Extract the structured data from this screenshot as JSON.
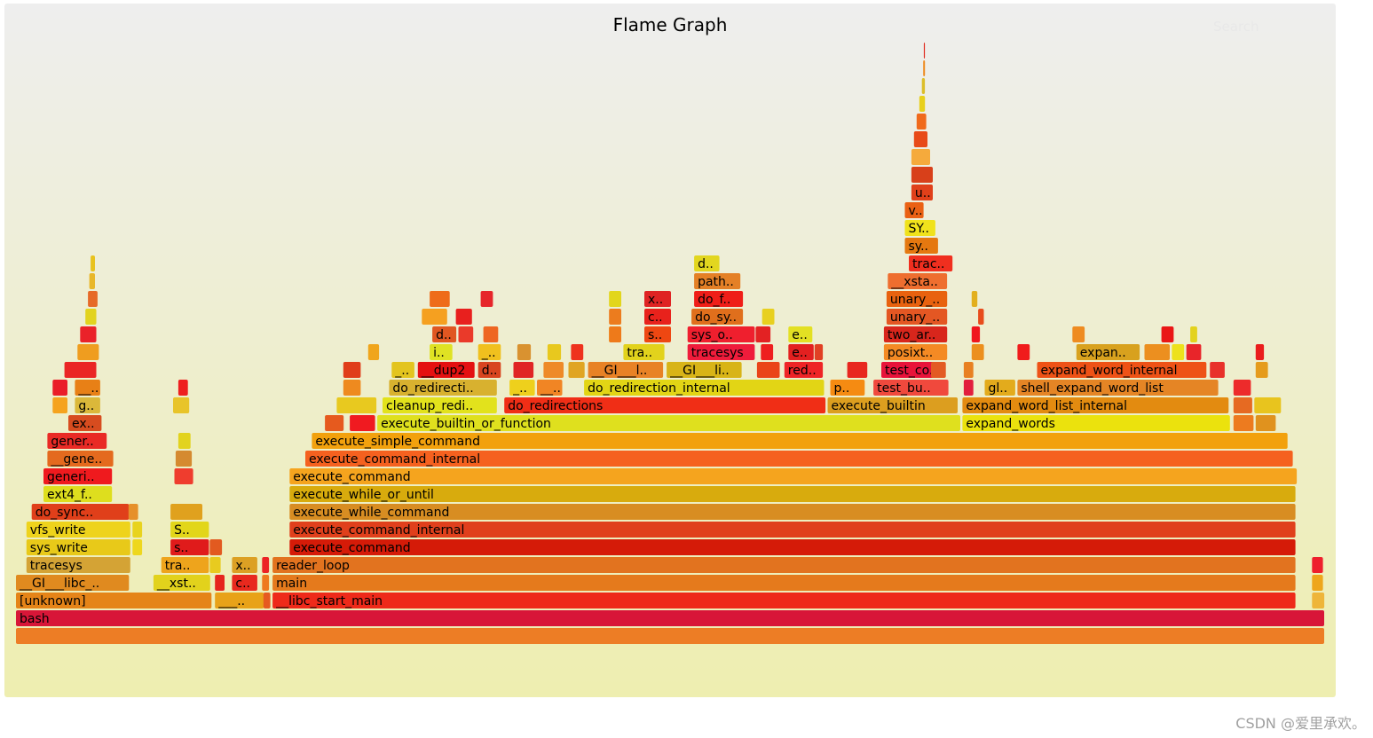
{
  "title": "Flame Graph",
  "search_label": "Search",
  "watermark": "CSDN @爱里承欢。",
  "chart_data": {
    "type": "flame",
    "title": "Flame Graph",
    "x_unit": "percent of total samples",
    "levels_bottom_up": true,
    "frames": [
      {
        "d": 0,
        "x": 0,
        "w": 100,
        "n": "",
        "c": "#ed7d25"
      },
      {
        "d": 1,
        "x": 0,
        "w": 100,
        "n": "bash",
        "c": "#d81638"
      },
      {
        "d": 2,
        "x": 0,
        "w": 15.0,
        "n": "[unknown]",
        "c": "#e58418"
      },
      {
        "d": 2,
        "x": 15.2,
        "w": 3.8,
        "n": "___..",
        "c": "#e8a218"
      },
      {
        "d": 2,
        "x": 19.6,
        "w": 78.2,
        "n": "__libc_start_main",
        "c": "#ee2a1a"
      },
      {
        "d": 2,
        "x": 99.0,
        "w": 1.0,
        "n": "",
        "c": "#eeb53a"
      },
      {
        "d": 3,
        "x": 0,
        "w": 8.7,
        "n": "__GI___libc_..",
        "c": "#e08a1f"
      },
      {
        "d": 3,
        "x": 10.5,
        "w": 4.4,
        "n": "__xst..",
        "c": "#e2d21c"
      },
      {
        "d": 3,
        "x": 16.5,
        "w": 2.0,
        "n": "c..",
        "c": "#e8291e"
      },
      {
        "d": 3,
        "x": 19.6,
        "w": 78.2,
        "n": "main",
        "c": "#e57a1c"
      },
      {
        "d": 3,
        "x": 99.0,
        "w": 0.9,
        "n": "",
        "c": "#eea61c"
      },
      {
        "d": 4,
        "x": 0.8,
        "w": 8.0,
        "n": "tracesys",
        "c": "#d4a335"
      },
      {
        "d": 4,
        "x": 11.1,
        "w": 3.7,
        "n": "tra..",
        "c": "#eea41c"
      },
      {
        "d": 4,
        "x": 16.5,
        "w": 2.0,
        "n": "x..",
        "c": "#dca024"
      },
      {
        "d": 4,
        "x": 19.6,
        "w": 78.2,
        "n": "reader_loop",
        "c": "#e2731f"
      },
      {
        "d": 4,
        "x": 99.0,
        "w": 0.9,
        "n": "",
        "c": "#ee1f2d"
      },
      {
        "d": 5,
        "x": 0.8,
        "w": 8.0,
        "n": "sys_write",
        "c": "#e8c919"
      },
      {
        "d": 5,
        "x": 11.8,
        "w": 3.0,
        "n": "s..",
        "c": "#e01b1b"
      },
      {
        "d": 5,
        "x": 20.9,
        "w": 76.9,
        "n": "execute_command",
        "c": "#d51b08"
      },
      {
        "d": 6,
        "x": 0.8,
        "w": 8.0,
        "n": "vfs_write",
        "c": "#eed31c"
      },
      {
        "d": 6,
        "x": 11.8,
        "w": 3.0,
        "n": "S..",
        "c": "#e2d619"
      },
      {
        "d": 6,
        "x": 20.9,
        "w": 76.9,
        "n": "execute_command_internal",
        "c": "#e0401c"
      },
      {
        "d": 7,
        "x": 1.2,
        "w": 7.5,
        "n": "do_sync..",
        "c": "#e03f1a"
      },
      {
        "d": 7,
        "x": 11.8,
        "w": 2.5,
        "n": "",
        "c": "#e0a11e"
      },
      {
        "d": 7,
        "x": 20.9,
        "w": 76.9,
        "n": "execute_while_command",
        "c": "#d88d22"
      },
      {
        "d": 8,
        "x": 2.1,
        "w": 5.3,
        "n": "ext4_f..",
        "c": "#dede1e"
      },
      {
        "d": 8,
        "x": 20.9,
        "w": 76.9,
        "n": "execute_while_or_until",
        "c": "#d8ab0d"
      },
      {
        "d": 9,
        "x": 2.1,
        "w": 5.3,
        "n": "generi..",
        "c": "#ef1a1e"
      },
      {
        "d": 9,
        "x": 12.1,
        "w": 1.5,
        "n": "",
        "c": "#ef3d2e"
      },
      {
        "d": 9,
        "x": 20.9,
        "w": 77.0,
        "n": "execute_command",
        "c": "#f5a41e"
      },
      {
        "d": 10,
        "x": 2.4,
        "w": 5.1,
        "n": "__gene..",
        "c": "#e46a1e"
      },
      {
        "d": 10,
        "x": 22.1,
        "w": 75.5,
        "n": "execute_command_internal",
        "c": "#f5611f"
      },
      {
        "d": 11,
        "x": 2.4,
        "w": 4.6,
        "n": "gener..",
        "c": "#e92a25"
      },
      {
        "d": 11,
        "x": 22.6,
        "w": 74.6,
        "n": "execute_simple_command",
        "c": "#f2a10d"
      },
      {
        "d": 12,
        "x": 4.0,
        "w": 2.6,
        "n": "ex..",
        "c": "#d74c1f"
      },
      {
        "d": 12,
        "x": 27.6,
        "w": 44.6,
        "n": "execute_builtin_or_function",
        "c": "#dfe01e"
      },
      {
        "d": 12,
        "x": 72.3,
        "w": 20.5,
        "n": "expand_words",
        "c": "#ebe20d"
      },
      {
        "d": 12,
        "x": 93.0,
        "w": 1.6,
        "n": "",
        "c": "#ed7b1f"
      },
      {
        "d": 13,
        "x": 4.5,
        "w": 2.0,
        "n": "g..",
        "c": "#dbb83a"
      },
      {
        "d": 13,
        "x": 28.0,
        "w": 8.8,
        "n": "cleanup_redi..",
        "c": "#e2e21c"
      },
      {
        "d": 13,
        "x": 37.3,
        "w": 24.6,
        "n": "do_redirections",
        "c": "#f02e16"
      },
      {
        "d": 13,
        "x": 62.0,
        "w": 10.0,
        "n": "execute_builtin",
        "c": "#dc9e1f"
      },
      {
        "d": 13,
        "x": 72.3,
        "w": 20.4,
        "n": "expand_word_list_internal",
        "c": "#e38b10"
      },
      {
        "d": 14,
        "x": 4.5,
        "w": 2.0,
        "n": "__..",
        "c": "#e88016"
      },
      {
        "d": 14,
        "x": 28.5,
        "w": 8.3,
        "n": "do_redirecti..",
        "c": "#d8b12f"
      },
      {
        "d": 14,
        "x": 37.7,
        "w": 2.0,
        "n": "_..",
        "c": "#eed01c"
      },
      {
        "d": 14,
        "x": 39.8,
        "w": 2.0,
        "n": "__..",
        "c": "#f18524"
      },
      {
        "d": 14,
        "x": 43.4,
        "w": 18.4,
        "n": "do_redirection_internal",
        "c": "#e2d515"
      },
      {
        "d": 14,
        "x": 62.2,
        "w": 2.7,
        "n": "p..",
        "c": "#f58b12"
      },
      {
        "d": 14,
        "x": 65.5,
        "w": 5.8,
        "n": "test_bu..",
        "c": "#f0493d"
      },
      {
        "d": 14,
        "x": 74.0,
        "w": 2.4,
        "n": "gl..",
        "c": "#e3ab1c"
      },
      {
        "d": 14,
        "x": 76.5,
        "w": 15.4,
        "n": "shell_expand_word_list",
        "c": "#e58525"
      },
      {
        "d": 15,
        "x": 28.7,
        "w": 1.8,
        "n": "_..",
        "c": "#e3c41e"
      },
      {
        "d": 15,
        "x": 30.7,
        "w": 4.4,
        "n": "__dup2",
        "c": "#e41111"
      },
      {
        "d": 15,
        "x": 35.3,
        "w": 1.8,
        "n": "d..",
        "c": "#d8451f"
      },
      {
        "d": 15,
        "x": 43.7,
        "w": 5.8,
        "n": "__GI___l..",
        "c": "#e88225"
      },
      {
        "d": 15,
        "x": 49.7,
        "w": 5.8,
        "n": "__GI___li..",
        "c": "#d8b417"
      },
      {
        "d": 15,
        "x": 58.7,
        "w": 3.0,
        "n": "red..",
        "c": "#ee2426"
      },
      {
        "d": 15,
        "x": 66.1,
        "w": 4.4,
        "n": "test_co..",
        "c": "#e8133a"
      },
      {
        "d": 15,
        "x": 78.0,
        "w": 13.0,
        "n": "expand_word_internal",
        "c": "#ee5216"
      },
      {
        "d": 16,
        "x": 31.6,
        "w": 1.8,
        "n": "i..",
        "c": "#dfe223"
      },
      {
        "d": 16,
        "x": 35.3,
        "w": 1.8,
        "n": "_..",
        "c": "#f0c01e"
      },
      {
        "d": 16,
        "x": 46.4,
        "w": 3.2,
        "n": "tra..",
        "c": "#e2d21c"
      },
      {
        "d": 16,
        "x": 51.3,
        "w": 5.2,
        "n": "tracesys",
        "c": "#ef1c3b"
      },
      {
        "d": 16,
        "x": 59.0,
        "w": 2.0,
        "n": "e..",
        "c": "#e32020"
      },
      {
        "d": 16,
        "x": 66.3,
        "w": 4.9,
        "n": "posixt..",
        "c": "#f48a24"
      },
      {
        "d": 16,
        "x": 81.0,
        "w": 4.9,
        "n": "expan..",
        "c": "#d8a11e"
      },
      {
        "d": 17,
        "x": 31.8,
        "w": 1.9,
        "n": "d..",
        "c": "#e05721"
      },
      {
        "d": 17,
        "x": 48.0,
        "w": 2.1,
        "n": "s..",
        "c": "#ee4712"
      },
      {
        "d": 17,
        "x": 51.3,
        "w": 5.2,
        "n": "sys_o..",
        "c": "#ef1f2e"
      },
      {
        "d": 17,
        "x": 59.0,
        "w": 1.9,
        "n": "e..",
        "c": "#e3e023"
      },
      {
        "d": 17,
        "x": 66.3,
        "w": 4.9,
        "n": "two_ar..",
        "c": "#d8261c"
      },
      {
        "d": 18,
        "x": 48.0,
        "w": 2.1,
        "n": "c..",
        "c": "#e8221c"
      },
      {
        "d": 18,
        "x": 51.6,
        "w": 4.0,
        "n": "do_sy..",
        "c": "#e06f1c"
      },
      {
        "d": 18,
        "x": 66.5,
        "w": 4.7,
        "n": "unary_..",
        "c": "#e45723"
      },
      {
        "d": 19,
        "x": 48.0,
        "w": 2.1,
        "n": "x..",
        "c": "#df2323"
      },
      {
        "d": 19,
        "x": 51.8,
        "w": 3.8,
        "n": "do_f..",
        "c": "#ef1e18"
      },
      {
        "d": 19,
        "x": 66.5,
        "w": 4.7,
        "n": "unary_..",
        "c": "#e8620f"
      },
      {
        "d": 20,
        "x": 51.8,
        "w": 3.6,
        "n": "path..",
        "c": "#e48026"
      },
      {
        "d": 20,
        "x": 66.6,
        "w": 4.6,
        "n": "__xsta..",
        "c": "#ee6e2f"
      },
      {
        "d": 21,
        "x": 51.8,
        "w": 2.0,
        "n": "d..",
        "c": "#e2d61f"
      },
      {
        "d": 21,
        "x": 68.2,
        "w": 3.4,
        "n": "trac..",
        "c": "#f02f1f"
      },
      {
        "d": 22,
        "x": 67.9,
        "w": 2.6,
        "n": "sy..",
        "c": "#e57810"
      },
      {
        "d": 23,
        "x": 67.9,
        "w": 2.4,
        "n": "SY..",
        "c": "#f0e21c"
      },
      {
        "d": 24,
        "x": 67.9,
        "w": 1.5,
        "n": "v..",
        "c": "#ea6114"
      },
      {
        "d": 25,
        "x": 68.4,
        "w": 1.7,
        "n": "u..",
        "c": "#e0401a"
      },
      {
        "d": 26,
        "x": 68.4,
        "w": 1.7,
        "n": "",
        "c": "#d8401a"
      },
      {
        "d": 27,
        "x": 68.4,
        "w": 1.5,
        "n": "",
        "c": "#f5aa3c"
      },
      {
        "d": 28,
        "x": 68.6,
        "w": 1.1,
        "n": "",
        "c": "#e84a18"
      },
      {
        "d": 29,
        "x": 68.8,
        "w": 0.8,
        "n": "",
        "c": "#f06a1c"
      },
      {
        "d": 30,
        "x": 69.0,
        "w": 0.5,
        "n": "",
        "c": "#e8d01c"
      },
      {
        "d": 31,
        "x": 69.2,
        "w": 0.3,
        "n": "",
        "c": "#dcbe2a"
      },
      {
        "d": 32,
        "x": 69.3,
        "w": 0.2,
        "n": "",
        "c": "#ee8a1f"
      },
      {
        "d": 33,
        "x": 69.35,
        "w": 0.15,
        "n": "",
        "c": "#e02b1e"
      },
      {
        "d": 14,
        "x": 25.0,
        "w": 1.4,
        "n": "",
        "c": "#ee8a1f"
      },
      {
        "d": 15,
        "x": 25.0,
        "w": 1.4,
        "n": "",
        "c": "#e03d1a"
      },
      {
        "d": 16,
        "x": 26.9,
        "w": 0.9,
        "n": "",
        "c": "#f0a51c"
      },
      {
        "d": 13,
        "x": 24.5,
        "w": 3.1,
        "n": "",
        "c": "#e8c91f"
      },
      {
        "d": 12,
        "x": 23.6,
        "w": 1.5,
        "n": "",
        "c": "#e65a1e"
      },
      {
        "d": 12,
        "x": 25.5,
        "w": 2.0,
        "n": "",
        "c": "#f01a20"
      },
      {
        "d": 17,
        "x": 33.8,
        "w": 1.2,
        "n": "",
        "c": "#ea3a2a"
      },
      {
        "d": 17,
        "x": 35.7,
        "w": 1.2,
        "n": "",
        "c": "#ee6622"
      },
      {
        "d": 18,
        "x": 31.0,
        "w": 2.0,
        "n": "",
        "c": "#f5a020"
      },
      {
        "d": 18,
        "x": 33.6,
        "w": 1.3,
        "n": "",
        "c": "#e8201e"
      },
      {
        "d": 19,
        "x": 31.6,
        "w": 1.6,
        "n": "",
        "c": "#ee6c1a"
      },
      {
        "d": 19,
        "x": 35.5,
        "w": 1.0,
        "n": "",
        "c": "#e6262b"
      },
      {
        "d": 15,
        "x": 38.0,
        "w": 1.6,
        "n": "",
        "c": "#e02525"
      },
      {
        "d": 15,
        "x": 40.3,
        "w": 1.6,
        "n": "",
        "c": "#ee8a28"
      },
      {
        "d": 15,
        "x": 42.2,
        "w": 1.3,
        "n": "",
        "c": "#e0a522"
      },
      {
        "d": 16,
        "x": 38.3,
        "w": 1.1,
        "n": "",
        "c": "#d99230"
      },
      {
        "d": 16,
        "x": 40.6,
        "w": 1.1,
        "n": "",
        "c": "#e8c81e"
      },
      {
        "d": 16,
        "x": 42.4,
        "w": 1.0,
        "n": "",
        "c": "#ee321e"
      },
      {
        "d": 17,
        "x": 45.3,
        "w": 1.0,
        "n": "",
        "c": "#f0b11c"
      },
      {
        "d": 18,
        "x": 45.3,
        "w": 1.0,
        "n": "",
        "c": "#ec7c1e"
      },
      {
        "d": 17,
        "x": 45.3,
        "w": 1.0,
        "n": "",
        "c": "#ee7a1a"
      },
      {
        "d": 19,
        "x": 45.3,
        "w": 1.0,
        "n": "",
        "c": "#e2d61c"
      },
      {
        "d": 17,
        "x": 56.5,
        "w": 1.2,
        "n": "",
        "c": "#e32223"
      },
      {
        "d": 16,
        "x": 56.9,
        "w": 1.0,
        "n": "",
        "c": "#ee1f1f"
      },
      {
        "d": 15,
        "x": 56.6,
        "w": 1.8,
        "n": "",
        "c": "#ea4418"
      },
      {
        "d": 18,
        "x": 57.0,
        "w": 1.0,
        "n": "",
        "c": "#e8d01f"
      },
      {
        "d": 16,
        "x": 61.0,
        "w": 0.7,
        "n": "",
        "c": "#e14024"
      },
      {
        "d": 15,
        "x": 63.5,
        "w": 1.6,
        "n": "",
        "c": "#e8261e"
      },
      {
        "d": 13,
        "x": 93.0,
        "w": 1.5,
        "n": "",
        "c": "#e66a22"
      },
      {
        "d": 13,
        "x": 94.6,
        "w": 2.1,
        "n": "",
        "c": "#e8c41e"
      },
      {
        "d": 14,
        "x": 93.0,
        "w": 1.4,
        "n": "",
        "c": "#ed2b2b"
      },
      {
        "d": 12,
        "x": 94.7,
        "w": 1.6,
        "n": "",
        "c": "#e0921e"
      },
      {
        "d": 14,
        "x": 72.4,
        "w": 0.8,
        "n": "",
        "c": "#e21e3d"
      },
      {
        "d": 15,
        "x": 72.4,
        "w": 0.8,
        "n": "",
        "c": "#e88022"
      },
      {
        "d": 16,
        "x": 73.0,
        "w": 1.0,
        "n": "",
        "c": "#ec8f1e"
      },
      {
        "d": 17,
        "x": 73.0,
        "w": 0.7,
        "n": "",
        "c": "#f0161e"
      },
      {
        "d": 16,
        "x": 76.5,
        "w": 1.0,
        "n": "",
        "c": "#f01c1c"
      },
      {
        "d": 17,
        "x": 80.7,
        "w": 1.0,
        "n": "",
        "c": "#ee8b21"
      },
      {
        "d": 16,
        "x": 86.2,
        "w": 2.0,
        "n": "",
        "c": "#ec8f1f"
      },
      {
        "d": 16,
        "x": 88.3,
        "w": 1.0,
        "n": "",
        "c": "#ede11c"
      },
      {
        "d": 16,
        "x": 89.4,
        "w": 1.2,
        "n": "",
        "c": "#e8252a"
      },
      {
        "d": 17,
        "x": 87.5,
        "w": 1.0,
        "n": "",
        "c": "#ea1616"
      },
      {
        "d": 15,
        "x": 91.2,
        "w": 1.2,
        "n": "",
        "c": "#e8312a"
      },
      {
        "d": 15,
        "x": 94.7,
        "w": 1.0,
        "n": "",
        "c": "#e59b1c"
      },
      {
        "d": 16,
        "x": 94.7,
        "w": 0.7,
        "n": "",
        "c": "#ea1d1d"
      },
      {
        "d": 17,
        "x": 89.7,
        "w": 0.6,
        "n": "",
        "c": "#e3d21e"
      },
      {
        "d": 19,
        "x": 73.0,
        "w": 0.5,
        "n": "",
        "c": "#e2af1e"
      },
      {
        "d": 18,
        "x": 73.5,
        "w": 0.5,
        "n": "",
        "c": "#e84c1c"
      },
      {
        "d": 15,
        "x": 69.9,
        "w": 1.2,
        "n": "",
        "c": "#e35a23"
      },
      {
        "d": 13,
        "x": 12.0,
        "w": 1.3,
        "n": "",
        "c": "#e8c42a"
      },
      {
        "d": 14,
        "x": 12.4,
        "w": 0.8,
        "n": "",
        "c": "#ee1f1f"
      },
      {
        "d": 10,
        "x": 12.2,
        "w": 1.3,
        "n": "",
        "c": "#d58a30"
      },
      {
        "d": 11,
        "x": 12.4,
        "w": 1.0,
        "n": "",
        "c": "#e2d31e"
      },
      {
        "d": 15,
        "x": 3.7,
        "w": 2.5,
        "n": "",
        "c": "#ea2525"
      },
      {
        "d": 16,
        "x": 4.7,
        "w": 1.7,
        "n": "",
        "c": "#ef9d1f"
      },
      {
        "d": 17,
        "x": 4.9,
        "w": 1.3,
        "n": "",
        "c": "#ea2229"
      },
      {
        "d": 18,
        "x": 5.3,
        "w": 0.9,
        "n": "",
        "c": "#e2d31f"
      },
      {
        "d": 19,
        "x": 5.5,
        "w": 0.8,
        "n": "",
        "c": "#e66a28"
      },
      {
        "d": 20,
        "x": 5.6,
        "w": 0.5,
        "n": "",
        "c": "#e8b72a"
      },
      {
        "d": 21,
        "x": 5.7,
        "w": 0.4,
        "n": "",
        "c": "#e8c21e"
      },
      {
        "d": 14,
        "x": 2.8,
        "w": 1.2,
        "n": "",
        "c": "#ea1d28"
      },
      {
        "d": 13,
        "x": 2.8,
        "w": 1.2,
        "n": "",
        "c": "#f5a31e"
      },
      {
        "d": 7,
        "x": 8.6,
        "w": 0.8,
        "n": "",
        "c": "#e6902a"
      },
      {
        "d": 6,
        "x": 8.9,
        "w": 0.8,
        "n": "",
        "c": "#e8d31e"
      },
      {
        "d": 5,
        "x": 8.9,
        "w": 0.8,
        "n": "",
        "c": "#eed71e"
      },
      {
        "d": 4,
        "x": 14.8,
        "w": 0.9,
        "n": "",
        "c": "#e8cb1f"
      },
      {
        "d": 3,
        "x": 15.2,
        "w": 0.8,
        "n": "",
        "c": "#e6251e"
      },
      {
        "d": 2,
        "x": 18.9,
        "w": 0.6,
        "n": "",
        "c": "#e65a20"
      },
      {
        "d": 5,
        "x": 14.8,
        "w": 1.0,
        "n": "",
        "c": "#e25a20"
      },
      {
        "d": 4,
        "x": 18.8,
        "w": 0.6,
        "n": "",
        "c": "#ec2325"
      },
      {
        "d": 3,
        "x": 18.8,
        "w": 0.6,
        "n": "",
        "c": "#ee7a1f"
      }
    ]
  }
}
